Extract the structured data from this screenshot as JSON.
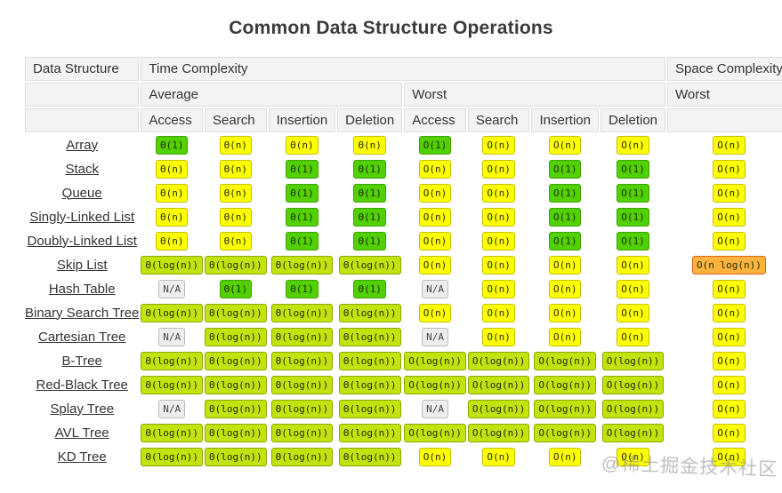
{
  "title": "Common Data Structure Operations",
  "watermark": "@稀土掘金技术社区",
  "colors": {
    "excellent_bg": "#53d000",
    "excellent_border": "#3da300",
    "good_bg": "#c4e20e",
    "good_border": "#8aa800",
    "fair_bg": "#ffff00",
    "fair_border": "#c0c000",
    "bad_bg": "#ffb23c",
    "bad_border": "#e0631c",
    "na_bg": "#ededed",
    "na_border": "#bbbbbb"
  },
  "table": {
    "headers": {
      "data_structure": "Data Structure",
      "time_complexity": "Time Complexity",
      "space_complexity": "Space Complexity",
      "average": "Average",
      "worst": "Worst",
      "space_worst": "Worst",
      "operations": [
        "Access",
        "Search",
        "Insertion",
        "Deletion"
      ]
    },
    "rows": [
      {
        "name": "Array",
        "avg": [
          "Θ(1)",
          "Θ(n)",
          "Θ(n)",
          "Θ(n)"
        ],
        "worst": [
          "O(1)",
          "O(n)",
          "O(n)",
          "O(n)"
        ],
        "space": "O(n)"
      },
      {
        "name": "Stack",
        "avg": [
          "Θ(n)",
          "Θ(n)",
          "Θ(1)",
          "Θ(1)"
        ],
        "worst": [
          "O(n)",
          "O(n)",
          "O(1)",
          "O(1)"
        ],
        "space": "O(n)"
      },
      {
        "name": "Queue",
        "avg": [
          "Θ(n)",
          "Θ(n)",
          "Θ(1)",
          "Θ(1)"
        ],
        "worst": [
          "O(n)",
          "O(n)",
          "O(1)",
          "O(1)"
        ],
        "space": "O(n)"
      },
      {
        "name": "Singly-Linked List",
        "avg": [
          "Θ(n)",
          "Θ(n)",
          "Θ(1)",
          "Θ(1)"
        ],
        "worst": [
          "O(n)",
          "O(n)",
          "O(1)",
          "O(1)"
        ],
        "space": "O(n)"
      },
      {
        "name": "Doubly-Linked List",
        "avg": [
          "Θ(n)",
          "Θ(n)",
          "Θ(1)",
          "Θ(1)"
        ],
        "worst": [
          "O(n)",
          "O(n)",
          "O(1)",
          "O(1)"
        ],
        "space": "O(n)"
      },
      {
        "name": "Skip List",
        "avg": [
          "Θ(log(n))",
          "Θ(log(n))",
          "Θ(log(n))",
          "Θ(log(n))"
        ],
        "worst": [
          "O(n)",
          "O(n)",
          "O(n)",
          "O(n)"
        ],
        "space": "O(n log(n))"
      },
      {
        "name": "Hash Table",
        "avg": [
          "N/A",
          "Θ(1)",
          "Θ(1)",
          "Θ(1)"
        ],
        "worst": [
          "N/A",
          "O(n)",
          "O(n)",
          "O(n)"
        ],
        "space": "O(n)"
      },
      {
        "name": "Binary Search Tree",
        "avg": [
          "Θ(log(n))",
          "Θ(log(n))",
          "Θ(log(n))",
          "Θ(log(n))"
        ],
        "worst": [
          "O(n)",
          "O(n)",
          "O(n)",
          "O(n)"
        ],
        "space": "O(n)"
      },
      {
        "name": "Cartesian Tree",
        "avg": [
          "N/A",
          "Θ(log(n))",
          "Θ(log(n))",
          "Θ(log(n))"
        ],
        "worst": [
          "N/A",
          "O(n)",
          "O(n)",
          "O(n)"
        ],
        "space": "O(n)"
      },
      {
        "name": "B-Tree",
        "avg": [
          "Θ(log(n))",
          "Θ(log(n))",
          "Θ(log(n))",
          "Θ(log(n))"
        ],
        "worst": [
          "O(log(n))",
          "O(log(n))",
          "O(log(n))",
          "O(log(n))"
        ],
        "space": "O(n)"
      },
      {
        "name": "Red-Black Tree",
        "avg": [
          "Θ(log(n))",
          "Θ(log(n))",
          "Θ(log(n))",
          "Θ(log(n))"
        ],
        "worst": [
          "O(log(n))",
          "O(log(n))",
          "O(log(n))",
          "O(log(n))"
        ],
        "space": "O(n)"
      },
      {
        "name": "Splay Tree",
        "avg": [
          "N/A",
          "Θ(log(n))",
          "Θ(log(n))",
          "Θ(log(n))"
        ],
        "worst": [
          "N/A",
          "O(log(n))",
          "O(log(n))",
          "O(log(n))"
        ],
        "space": "O(n)"
      },
      {
        "name": "AVL Tree",
        "avg": [
          "Θ(log(n))",
          "Θ(log(n))",
          "Θ(log(n))",
          "Θ(log(n))"
        ],
        "worst": [
          "O(log(n))",
          "O(log(n))",
          "O(log(n))",
          "O(log(n))"
        ],
        "space": "O(n)"
      },
      {
        "name": "KD Tree",
        "avg": [
          "Θ(log(n))",
          "Θ(log(n))",
          "Θ(log(n))",
          "Θ(log(n))"
        ],
        "worst": [
          "O(n)",
          "O(n)",
          "O(n)",
          "O(n)"
        ],
        "space": "O(n)"
      }
    ]
  }
}
